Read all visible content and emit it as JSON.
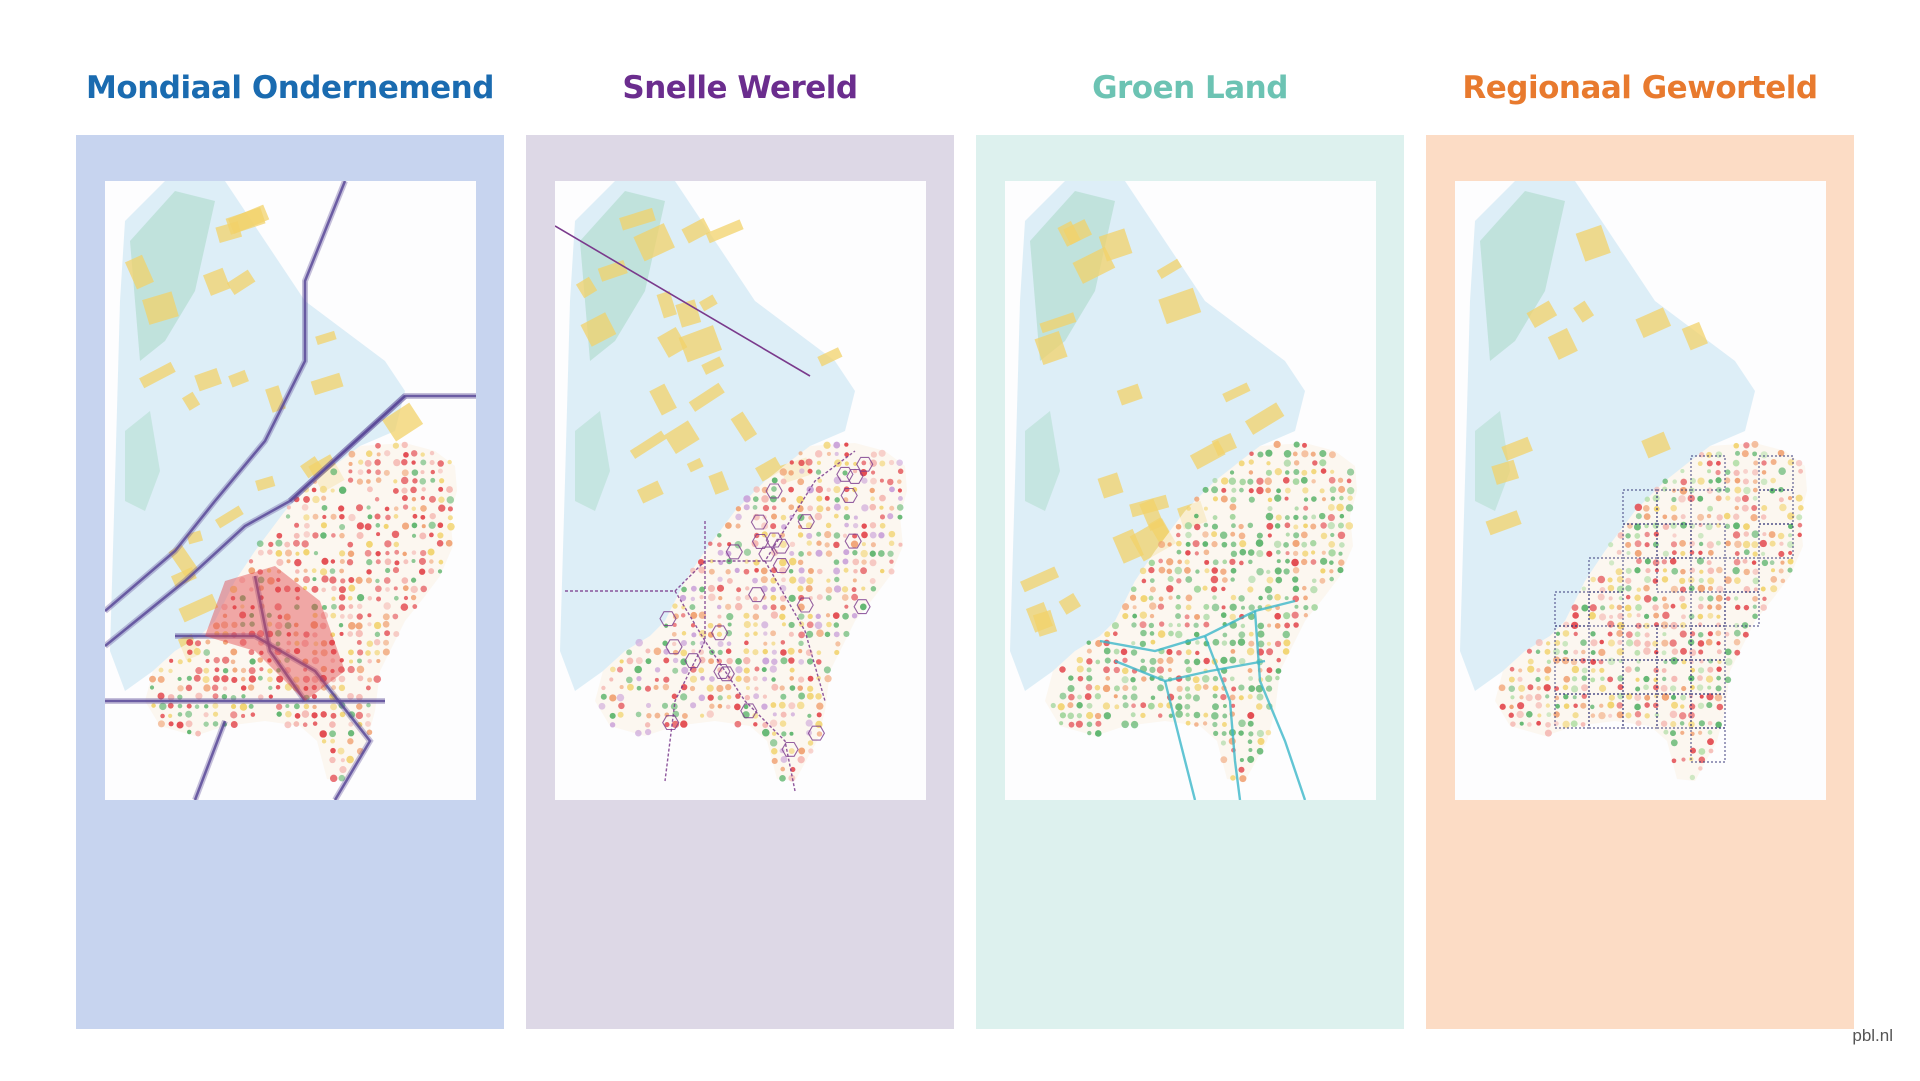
{
  "scenarios": [
    {
      "id": "mo",
      "title": "Mondiaal Ondernemend",
      "title_color": "#1a6bb0",
      "panel_color": "#c7d4ef",
      "network": "corridors",
      "line_color": "#5b4a99"
    },
    {
      "id": "sw",
      "title": "Snelle Wereld",
      "title_color": "#6b2d8e",
      "panel_color": "#ddd8e6",
      "network": "hexgrid",
      "line_color": "#7a3a8c"
    },
    {
      "id": "gl",
      "title": "Groen Land",
      "title_color": "#6cc3b3",
      "panel_color": "#ddf1ee",
      "network": "rivers",
      "line_color": "#3bb6c9"
    },
    {
      "id": "rg",
      "title": "Regionaal Geworteld",
      "title_color": "#e87a2e",
      "panel_color": "#fcdcc5",
      "network": "regions",
      "line_color": "#3a3a7a"
    }
  ],
  "source": "pbl.nl",
  "legend_colors": {
    "water": "#d7ebf6",
    "nature": "#a8d9c6",
    "wind_parks": "#f1d26a",
    "urban": "#e2444a",
    "green_area": "#5ab36a",
    "mixed": "#f0a070"
  }
}
